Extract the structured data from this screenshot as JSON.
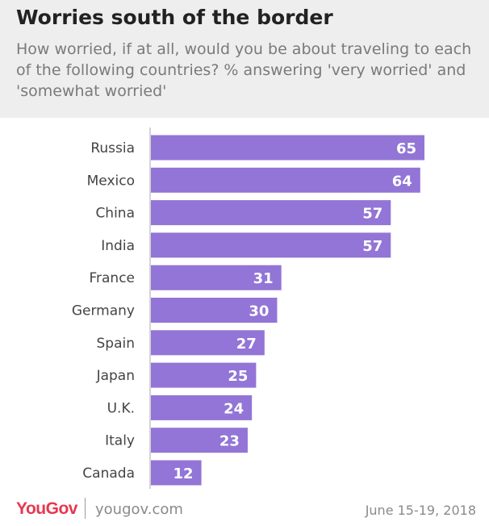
{
  "header": {
    "title": "Worries south of the border",
    "subtitle": "How worried, if at all, would you be about traveling to each of the following countries? % answering 'very worried' and 'somewhat worried'"
  },
  "footer": {
    "logo": "YouGov",
    "site": "yougov.com",
    "date": "June 15-19, 2018"
  },
  "colors": {
    "bar": "#9275d6",
    "value_label": "#ffffff",
    "category_label": "#444444",
    "axis": "#aaaaaa"
  },
  "chart_data": {
    "type": "bar",
    "orientation": "horizontal",
    "categories": [
      "Russia",
      "Mexico",
      "China",
      "India",
      "France",
      "Germany",
      "Spain",
      "Japan",
      "U.K.",
      "Italy",
      "Canada"
    ],
    "values": [
      65,
      64,
      57,
      57,
      31,
      30,
      27,
      25,
      24,
      23,
      12
    ],
    "title": "Worries south of the border",
    "xlabel": "",
    "ylabel": "",
    "xlim": [
      0,
      65
    ],
    "grid": false
  }
}
